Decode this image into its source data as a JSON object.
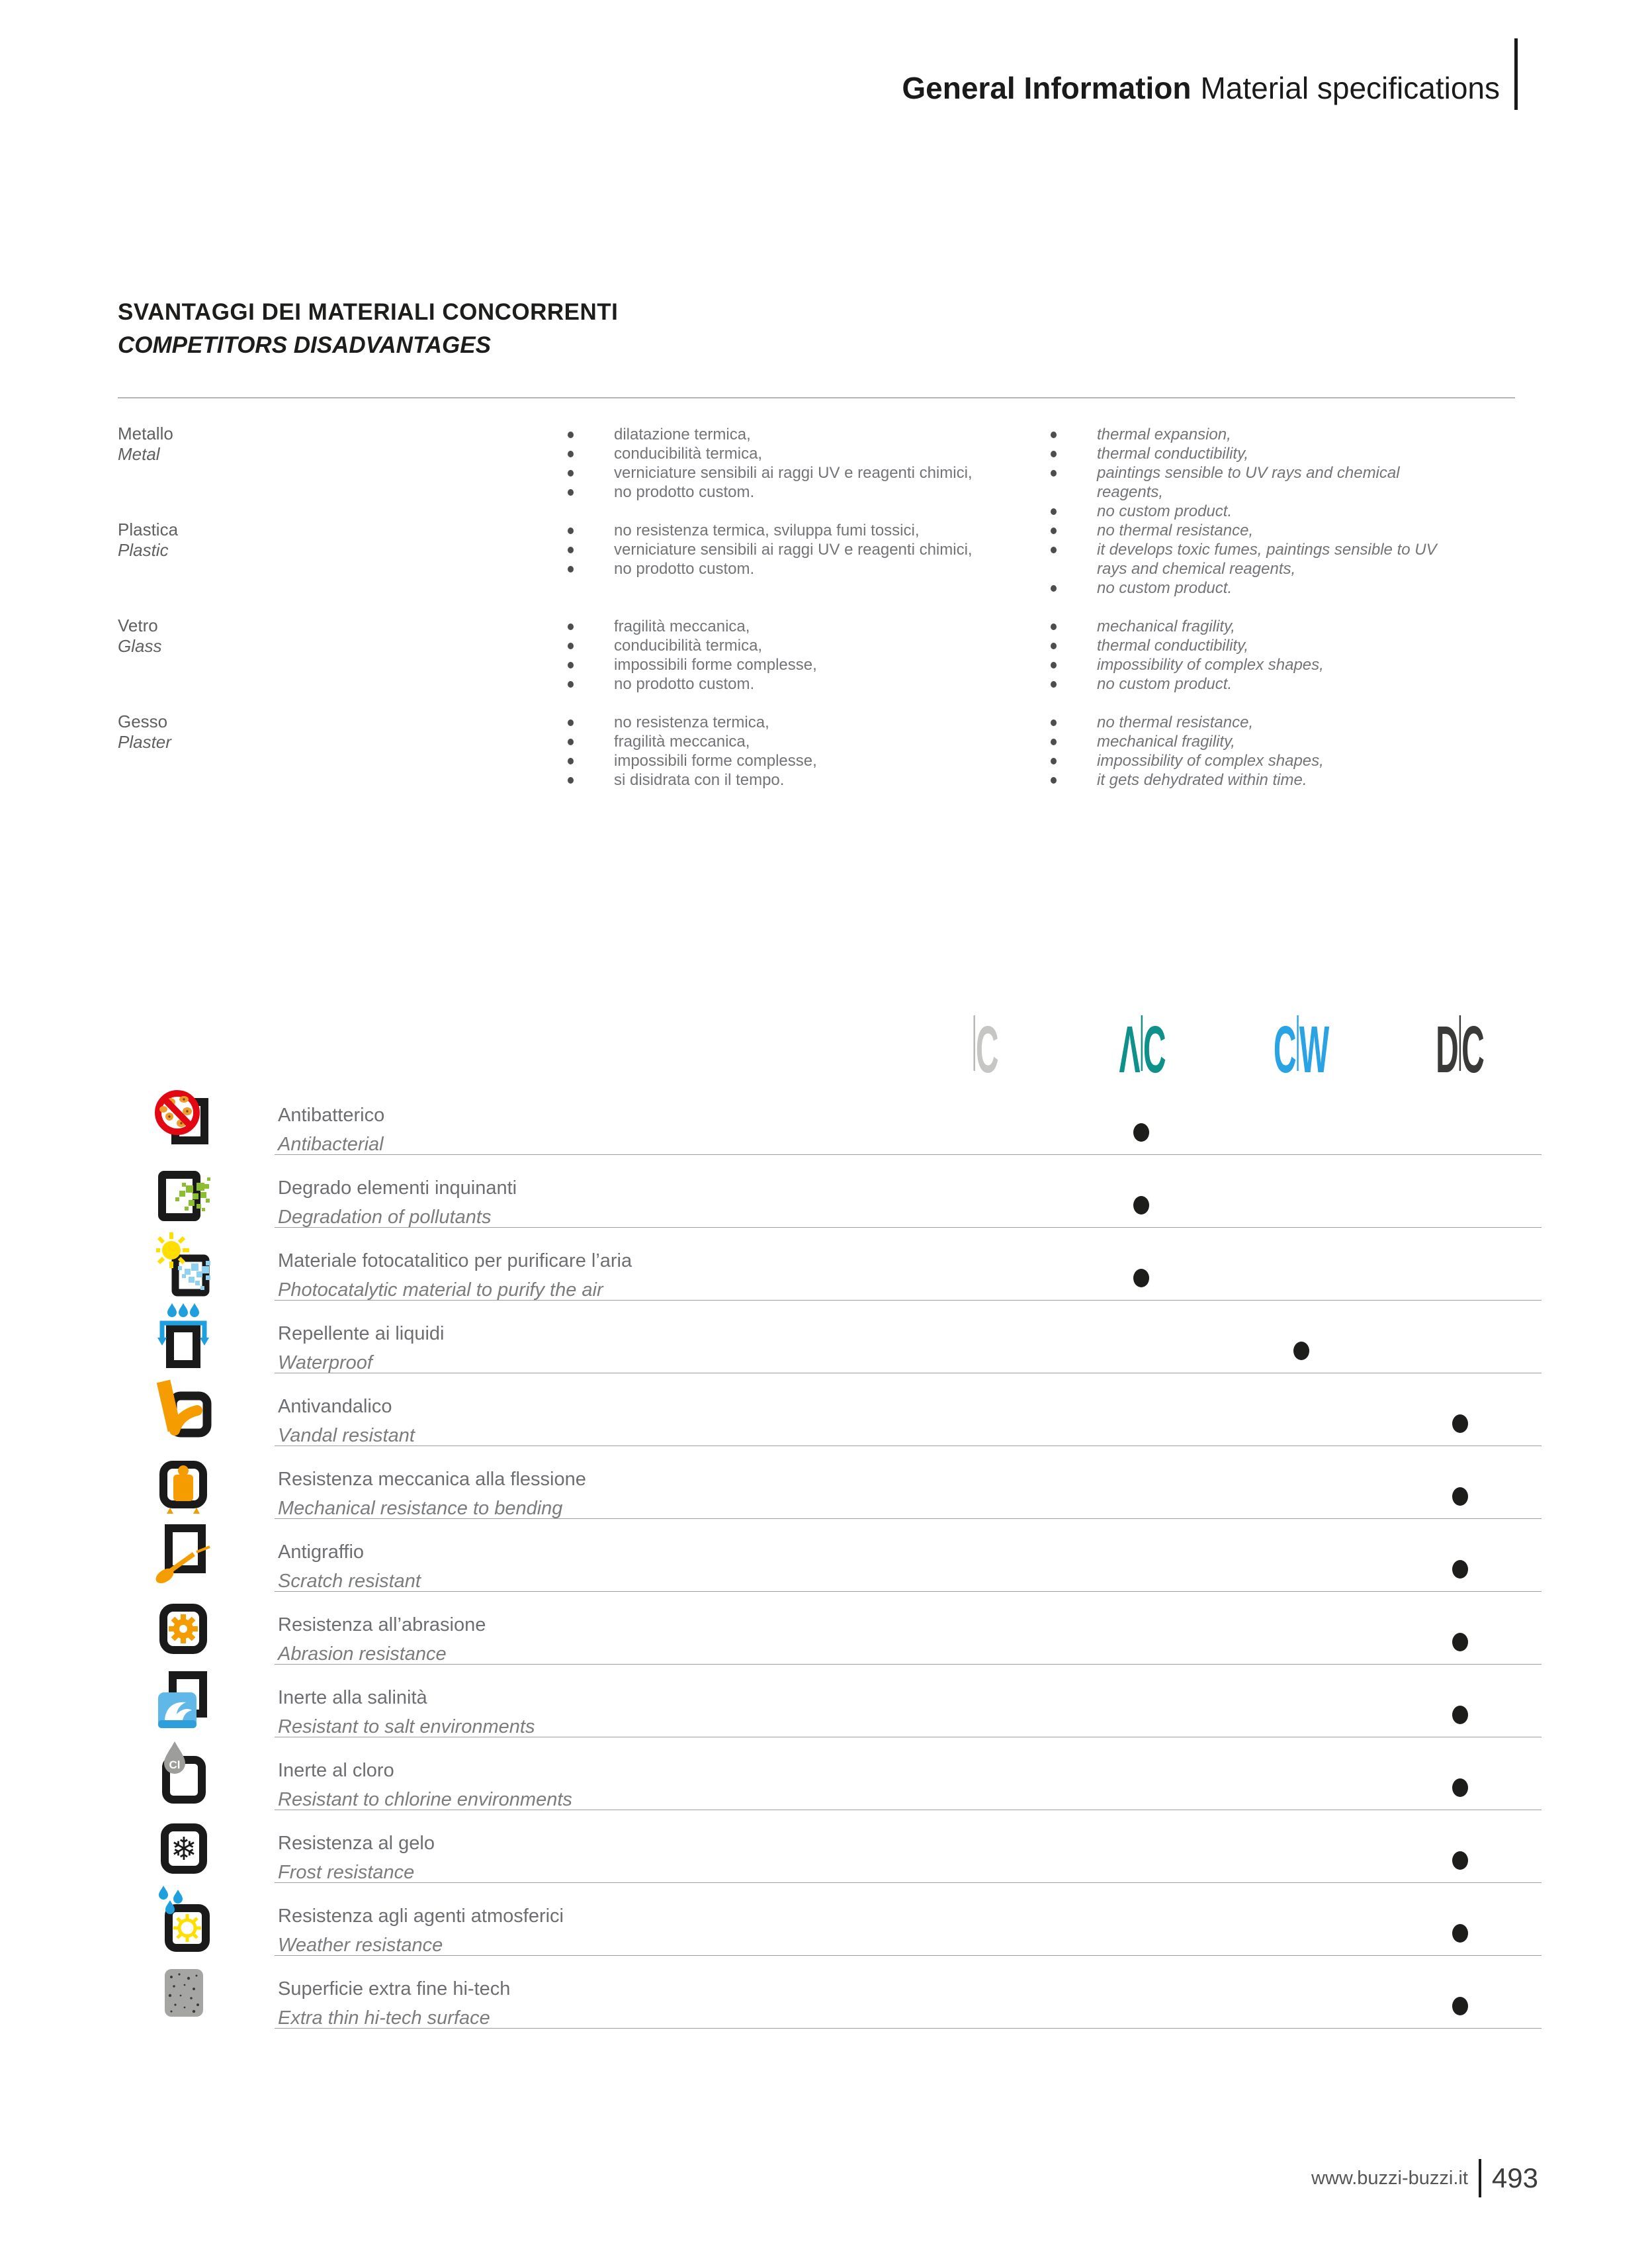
{
  "header": {
    "title_bold": "General Information",
    "title_regular": "Material specifications"
  },
  "section": {
    "title_it": "SVANTAGGI DEI MATERIALI CONCORRENTI",
    "title_en": "COMPETITORS DISADVANTAGES"
  },
  "materials": [
    {
      "name_it": "Metallo",
      "name_en": "Metal",
      "points_it": [
        "dilatazione termica,",
        "conducibilità termica,",
        "verniciature sensibili ai raggi UV e reagenti chimici,",
        "no prodotto custom."
      ],
      "points_en": [
        "thermal expansion,",
        "thermal conductibility,",
        "paintings sensible to UV rays and chemical reagents,",
        "no custom product."
      ]
    },
    {
      "name_it": "Plastica",
      "name_en": "Plastic",
      "points_it": [
        "no resistenza termica, sviluppa fumi tossici,",
        "verniciature sensibili ai raggi UV e reagenti chimici,",
        "no prodotto custom."
      ],
      "points_en": [
        "no thermal resistance,",
        "it develops toxic fumes, paintings sensible to UV rays and chemical reagents,",
        "no custom product."
      ]
    },
    {
      "name_it": "Vetro",
      "name_en": "Glass",
      "points_it": [
        "fragilità meccanica,",
        "conducibilità termica,",
        "impossibili forme complesse,",
        "no prodotto custom."
      ],
      "points_en": [
        "mechanical fragility,",
        "thermal conductibility,",
        "impossibility of complex shapes,",
        "no custom product."
      ]
    },
    {
      "name_it": "Gesso",
      "name_en": "Plaster",
      "points_it": [
        "no resistenza termica,",
        "fragilità meccanica,",
        "impossibili forme complesse,",
        "si disidrata con il tempo."
      ],
      "points_en": [
        "no thermal resistance,",
        "mechanical fragility,",
        "impossibility of complex shapes,",
        "it gets dehydrated within time."
      ]
    }
  ],
  "brands": [
    {
      "id": "c",
      "letters": [
        "C"
      ],
      "color": "#c6c6c5",
      "divider_color": "#b5b5b4",
      "divider_first": true
    },
    {
      "id": "ac",
      "letters": [
        "Λ",
        "C"
      ],
      "color": "#0f918b",
      "divider_color": "#0f918b",
      "divider_first": false
    },
    {
      "id": "cw",
      "letters": [
        "C",
        "W"
      ],
      "color": "#29a3e3",
      "divider_color": "#29a3e3",
      "divider_first": false
    },
    {
      "id": "dc",
      "letters": [
        "D",
        "C"
      ],
      "color": "#3a3a39",
      "divider_color": "#3a3a39",
      "divider_first": false
    }
  ],
  "properties": {
    "dot_color": "#1d1d1b",
    "rows": [
      {
        "it": "Antibatterico",
        "en": "Antibacterial",
        "icon": "antibacterial-icon",
        "brand": "ac"
      },
      {
        "it": "Degrado elementi inquinanti",
        "en": "Degradation of pollutants",
        "icon": "pollutants-icon",
        "brand": "ac"
      },
      {
        "it": "Materiale fotocatalitico per purificare l’aria",
        "en": "Photocatalytic material to purify the air",
        "icon": "photocatalytic-icon",
        "brand": "ac"
      },
      {
        "it": "Repellente ai liquidi",
        "en": "Waterproof",
        "icon": "waterproof-icon",
        "brand": "cw"
      },
      {
        "it": "Antivandalico",
        "en": "Vandal resistant",
        "icon": "vandal-icon",
        "brand": "dc"
      },
      {
        "it": "Resistenza meccanica alla flessione",
        "en": "Mechanical resistance to bending",
        "icon": "bending-icon",
        "brand": "dc"
      },
      {
        "it": "Antigraffio",
        "en": "Scratch resistant",
        "icon": "scratch-icon",
        "brand": "dc"
      },
      {
        "it": "Resistenza all’abrasione",
        "en": "Abrasion resistance",
        "icon": "abrasion-icon",
        "brand": "dc"
      },
      {
        "it": "Inerte alla salinità",
        "en": "Resistant to salt environments",
        "icon": "salt-icon",
        "brand": "dc"
      },
      {
        "it": "Inerte al cloro",
        "en": "Resistant to chlorine environments",
        "icon": "chlorine-icon",
        "brand": "dc"
      },
      {
        "it": "Resistenza al gelo",
        "en": "Frost resistance",
        "icon": "frost-icon",
        "brand": "dc"
      },
      {
        "it": "Resistenza agli agenti atmosferici",
        "en": "Weather resistance",
        "icon": "weather-icon",
        "brand": "dc"
      },
      {
        "it": "Superficie extra fine hi-tech",
        "en": "Extra thin hi-tech surface",
        "icon": "surface-icon",
        "brand": "dc"
      }
    ]
  },
  "footer": {
    "url": "www.buzzi-buzzi.it",
    "page": "493"
  }
}
